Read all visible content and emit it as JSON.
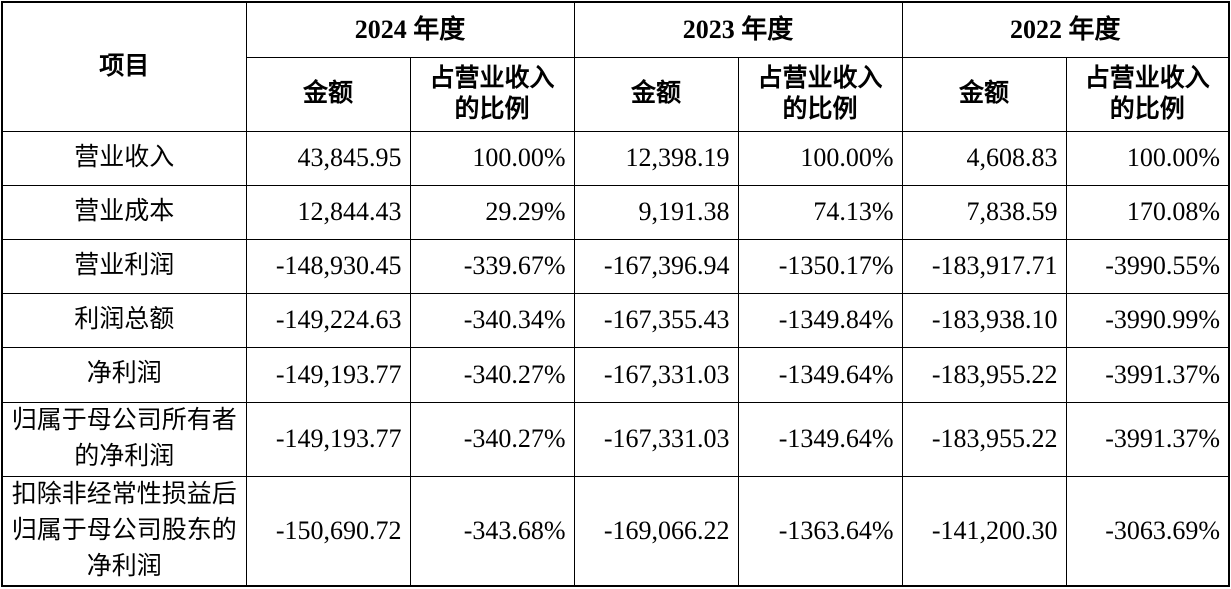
{
  "table": {
    "header": {
      "item_label": "项目",
      "years": [
        "2024 年度",
        "2023 年度",
        "2022 年度"
      ],
      "sub_amount": "金额",
      "sub_ratio": "占营业收入的比例"
    },
    "rows": [
      {
        "label": "营业收入",
        "values": [
          "43,845.95",
          "100.00%",
          "12,398.19",
          "100.00%",
          "4,608.83",
          "100.00%"
        ]
      },
      {
        "label": "营业成本",
        "values": [
          "12,844.43",
          "29.29%",
          "9,191.38",
          "74.13%",
          "7,838.59",
          "170.08%"
        ]
      },
      {
        "label": "营业利润",
        "values": [
          "-148,930.45",
          "-339.67%",
          "-167,396.94",
          "-1350.17%",
          "-183,917.71",
          "-3990.55%"
        ]
      },
      {
        "label": "利润总额",
        "values": [
          "-149,224.63",
          "-340.34%",
          "-167,355.43",
          "-1349.84%",
          "-183,938.10",
          "-3990.99%"
        ]
      },
      {
        "label": "净利润",
        "values": [
          "-149,193.77",
          "-340.27%",
          "-167,331.03",
          "-1349.64%",
          "-183,955.22",
          "-3991.37%"
        ]
      },
      {
        "label": "归属于母公司所有者的净利润",
        "values": [
          "-149,193.77",
          "-340.27%",
          "-167,331.03",
          "-1349.64%",
          "-183,955.22",
          "-3991.37%"
        ]
      },
      {
        "label": "扣除非经常性损益后归属于母公司股东的净利润",
        "values": [
          "-150,690.72",
          "-343.68%",
          "-169,066.22",
          "-1363.64%",
          "-141,200.30",
          "-3063.69%"
        ]
      }
    ]
  }
}
